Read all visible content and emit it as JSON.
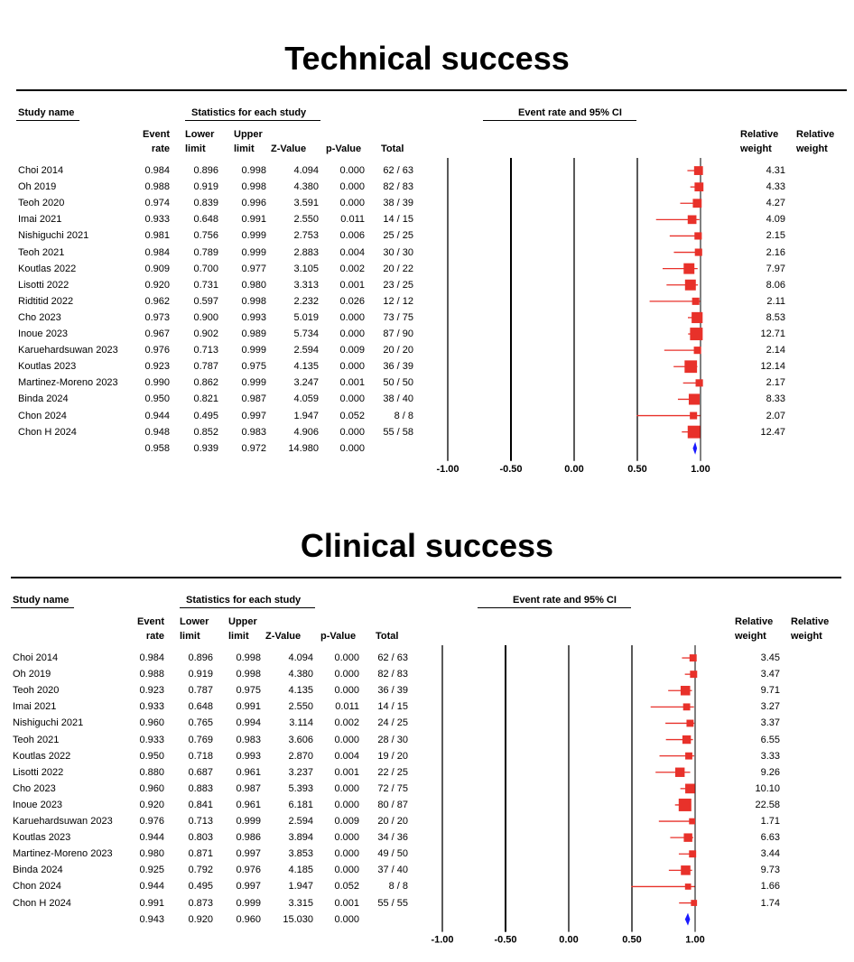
{
  "panels": [
    {
      "title": "Technical success",
      "headers": {
        "study_name": "Study name",
        "stats_group": "Statistics for each study",
        "plot_group": "Event rate and 95% CI",
        "event_rate": [
          "Event",
          "rate"
        ],
        "lower": [
          "Lower",
          "limit"
        ],
        "upper": [
          "Upper",
          "limit"
        ],
        "z": "Z-Value",
        "p": "p-Value",
        "total": "Total",
        "rel_weight_1": [
          "Relative",
          "weight"
        ],
        "rel_weight_2": [
          "Relative",
          "weight"
        ]
      },
      "rows": [
        {
          "study": "Choi 2014",
          "rate": "0.984",
          "lower": "0.896",
          "upper": "0.998",
          "z": "4.094",
          "p": "0.000",
          "total": "62 / 63",
          "weight": "4.31"
        },
        {
          "study": "Oh 2019",
          "rate": "0.988",
          "lower": "0.919",
          "upper": "0.998",
          "z": "4.380",
          "p": "0.000",
          "total": "82 / 83",
          "weight": "4.33"
        },
        {
          "study": "Teoh 2020",
          "rate": "0.974",
          "lower": "0.839",
          "upper": "0.996",
          "z": "3.591",
          "p": "0.000",
          "total": "38 / 39",
          "weight": "4.27"
        },
        {
          "study": "Imai 2021",
          "rate": "0.933",
          "lower": "0.648",
          "upper": "0.991",
          "z": "2.550",
          "p": "0.011",
          "total": "14 / 15",
          "weight": "4.09"
        },
        {
          "study": "Nishiguchi 2021",
          "rate": "0.981",
          "lower": "0.756",
          "upper": "0.999",
          "z": "2.753",
          "p": "0.006",
          "total": "25 / 25",
          "weight": "2.15"
        },
        {
          "study": "Teoh 2021",
          "rate": "0.984",
          "lower": "0.789",
          "upper": "0.999",
          "z": "2.883",
          "p": "0.004",
          "total": "30 / 30",
          "weight": "2.16"
        },
        {
          "study": "Koutlas 2022",
          "rate": "0.909",
          "lower": "0.700",
          "upper": "0.977",
          "z": "3.105",
          "p": "0.002",
          "total": "20 / 22",
          "weight": "7.97"
        },
        {
          "study": "Lisotti 2022",
          "rate": "0.920",
          "lower": "0.731",
          "upper": "0.980",
          "z": "3.313",
          "p": "0.001",
          "total": "23 / 25",
          "weight": "8.06"
        },
        {
          "study": "Ridtitid 2022",
          "rate": "0.962",
          "lower": "0.597",
          "upper": "0.998",
          "z": "2.232",
          "p": "0.026",
          "total": "12 / 12",
          "weight": "2.11"
        },
        {
          "study": "Cho 2023",
          "rate": "0.973",
          "lower": "0.900",
          "upper": "0.993",
          "z": "5.019",
          "p": "0.000",
          "total": "73 / 75",
          "weight": "8.53"
        },
        {
          "study": "Inoue 2023",
          "rate": "0.967",
          "lower": "0.902",
          "upper": "0.989",
          "z": "5.734",
          "p": "0.000",
          "total": "87 / 90",
          "weight": "12.71"
        },
        {
          "study": "Karuehardsuwan 2023",
          "rate": "0.976",
          "lower": "0.713",
          "upper": "0.999",
          "z": "2.594",
          "p": "0.009",
          "total": "20 / 20",
          "weight": "2.14"
        },
        {
          "study": "Koutlas 2023",
          "rate": "0.923",
          "lower": "0.787",
          "upper": "0.975",
          "z": "4.135",
          "p": "0.000",
          "total": "36 / 39",
          "weight": "12.14"
        },
        {
          "study": "Martinez-Moreno 2023",
          "rate": "0.990",
          "lower": "0.862",
          "upper": "0.999",
          "z": "3.247",
          "p": "0.001",
          "total": "50 / 50",
          "weight": "2.17"
        },
        {
          "study": "Binda 2024",
          "rate": "0.950",
          "lower": "0.821",
          "upper": "0.987",
          "z": "4.059",
          "p": "0.000",
          "total": "38 / 40",
          "weight": "8.33"
        },
        {
          "study": "Chon 2024",
          "rate": "0.944",
          "lower": "0.495",
          "upper": "0.997",
          "z": "1.947",
          "p": "0.052",
          "total": "8 / 8",
          "weight": "2.07"
        },
        {
          "study": "Chon H 2024",
          "rate": "0.948",
          "lower": "0.852",
          "upper": "0.983",
          "z": "4.906",
          "p": "0.000",
          "total": "55 / 58",
          "weight": "12.47"
        }
      ],
      "summary": {
        "rate": "0.958",
        "lower": "0.939",
        "upper": "0.972",
        "z": "14.980",
        "p": "0.000"
      },
      "axis_ticks": [
        "-1.00",
        "-0.50",
        "0.00",
        "0.50",
        "1.00"
      ]
    },
    {
      "title": "Clinical success",
      "headers": {
        "study_name": "Study name",
        "stats_group": "Statistics for each study",
        "plot_group": "Event rate and 95% CI",
        "event_rate": [
          "Event",
          "rate"
        ],
        "lower": [
          "Lower",
          "limit"
        ],
        "upper": [
          "Upper",
          "limit"
        ],
        "z": "Z-Value",
        "p": "p-Value",
        "total": "Total",
        "rel_weight_1": [
          "Relative",
          "weight"
        ],
        "rel_weight_2": [
          "Relative",
          "weight"
        ]
      },
      "rows": [
        {
          "study": "Choi 2014",
          "rate": "0.984",
          "lower": "0.896",
          "upper": "0.998",
          "z": "4.094",
          "p": "0.000",
          "total": "62 / 63",
          "weight": "3.45"
        },
        {
          "study": "Oh 2019",
          "rate": "0.988",
          "lower": "0.919",
          "upper": "0.998",
          "z": "4.380",
          "p": "0.000",
          "total": "82 / 83",
          "weight": "3.47"
        },
        {
          "study": "Teoh 2020",
          "rate": "0.923",
          "lower": "0.787",
          "upper": "0.975",
          "z": "4.135",
          "p": "0.000",
          "total": "36 / 39",
          "weight": "9.71"
        },
        {
          "study": "Imai 2021",
          "rate": "0.933",
          "lower": "0.648",
          "upper": "0.991",
          "z": "2.550",
          "p": "0.011",
          "total": "14 / 15",
          "weight": "3.27"
        },
        {
          "study": "Nishiguchi 2021",
          "rate": "0.960",
          "lower": "0.765",
          "upper": "0.994",
          "z": "3.114",
          "p": "0.002",
          "total": "24 / 25",
          "weight": "3.37"
        },
        {
          "study": "Teoh 2021",
          "rate": "0.933",
          "lower": "0.769",
          "upper": "0.983",
          "z": "3.606",
          "p": "0.000",
          "total": "28 / 30",
          "weight": "6.55"
        },
        {
          "study": "Koutlas 2022",
          "rate": "0.950",
          "lower": "0.718",
          "upper": "0.993",
          "z": "2.870",
          "p": "0.004",
          "total": "19 / 20",
          "weight": "3.33"
        },
        {
          "study": "Lisotti 2022",
          "rate": "0.880",
          "lower": "0.687",
          "upper": "0.961",
          "z": "3.237",
          "p": "0.001",
          "total": "22 / 25",
          "weight": "9.26"
        },
        {
          "study": "Cho 2023",
          "rate": "0.960",
          "lower": "0.883",
          "upper": "0.987",
          "z": "5.393",
          "p": "0.000",
          "total": "72 / 75",
          "weight": "10.10"
        },
        {
          "study": "Inoue 2023",
          "rate": "0.920",
          "lower": "0.841",
          "upper": "0.961",
          "z": "6.181",
          "p": "0.000",
          "total": "80 / 87",
          "weight": "22.58"
        },
        {
          "study": "Karuehardsuwan 2023",
          "rate": "0.976",
          "lower": "0.713",
          "upper": "0.999",
          "z": "2.594",
          "p": "0.009",
          "total": "20 / 20",
          "weight": "1.71"
        },
        {
          "study": "Koutlas 2023",
          "rate": "0.944",
          "lower": "0.803",
          "upper": "0.986",
          "z": "3.894",
          "p": "0.000",
          "total": "34 / 36",
          "weight": "6.63"
        },
        {
          "study": "Martinez-Moreno 2023",
          "rate": "0.980",
          "lower": "0.871",
          "upper": "0.997",
          "z": "3.853",
          "p": "0.000",
          "total": "49 / 50",
          "weight": "3.44"
        },
        {
          "study": "Binda 2024",
          "rate": "0.925",
          "lower": "0.792",
          "upper": "0.976",
          "z": "4.185",
          "p": "0.000",
          "total": "37 / 40",
          "weight": "9.73"
        },
        {
          "study": "Chon 2024",
          "rate": "0.944",
          "lower": "0.495",
          "upper": "0.997",
          "z": "1.947",
          "p": "0.052",
          "total": "8 / 8",
          "weight": "1.66"
        },
        {
          "study": "Chon H 2024",
          "rate": "0.991",
          "lower": "0.873",
          "upper": "0.999",
          "z": "3.315",
          "p": "0.001",
          "total": "55 / 55",
          "weight": "1.74"
        }
      ],
      "summary": {
        "rate": "0.943",
        "lower": "0.920",
        "upper": "0.960",
        "z": "15.030",
        "p": "0.000"
      },
      "axis_ticks": [
        "-1.00",
        "-0.50",
        "0.00",
        "0.50",
        "1.00"
      ]
    }
  ],
  "colors": {
    "study_marker": "#e8312a",
    "summary_diamond": "#1a1aff",
    "axis": "#000000"
  },
  "chart_data": [
    {
      "type": "scatter",
      "subtype": "forest-plot",
      "title": "Technical success",
      "xlabel": "Event rate and 95% CI",
      "xlim": [
        -1.0,
        1.0
      ],
      "xticks": [
        -1.0,
        -0.5,
        0.0,
        0.5,
        1.0
      ],
      "categories": [
        "Choi 2014",
        "Oh 2019",
        "Teoh 2020",
        "Imai 2021",
        "Nishiguchi 2021",
        "Teoh 2021",
        "Koutlas 2022",
        "Lisotti 2022",
        "Ridtitid 2022",
        "Cho 2023",
        "Inoue 2023",
        "Karuehardsuwan 2023",
        "Koutlas 2023",
        "Martinez-Moreno 2023",
        "Binda 2024",
        "Chon 2024",
        "Chon H 2024"
      ],
      "estimate": [
        0.984,
        0.988,
        0.974,
        0.933,
        0.981,
        0.984,
        0.909,
        0.92,
        0.962,
        0.973,
        0.967,
        0.976,
        0.923,
        0.99,
        0.95,
        0.944,
        0.948
      ],
      "lower": [
        0.896,
        0.919,
        0.839,
        0.648,
        0.756,
        0.789,
        0.7,
        0.731,
        0.597,
        0.9,
        0.902,
        0.713,
        0.787,
        0.862,
        0.821,
        0.495,
        0.852
      ],
      "upper": [
        0.998,
        0.998,
        0.996,
        0.991,
        0.999,
        0.999,
        0.977,
        0.98,
        0.998,
        0.993,
        0.989,
        0.999,
        0.975,
        0.999,
        0.987,
        0.997,
        0.983
      ],
      "weight": [
        4.31,
        4.33,
        4.27,
        4.09,
        2.15,
        2.16,
        7.97,
        8.06,
        2.11,
        8.53,
        12.71,
        2.14,
        12.14,
        2.17,
        8.33,
        2.07,
        12.47
      ],
      "summary": {
        "estimate": 0.958,
        "lower": 0.939,
        "upper": 0.972
      }
    },
    {
      "type": "scatter",
      "subtype": "forest-plot",
      "title": "Clinical success",
      "xlabel": "Event rate and 95% CI",
      "xlim": [
        -1.0,
        1.0
      ],
      "xticks": [
        -1.0,
        -0.5,
        0.0,
        0.5,
        1.0
      ],
      "categories": [
        "Choi 2014",
        "Oh 2019",
        "Teoh 2020",
        "Imai 2021",
        "Nishiguchi 2021",
        "Teoh 2021",
        "Koutlas 2022",
        "Lisotti 2022",
        "Cho 2023",
        "Inoue 2023",
        "Karuehardsuwan 2023",
        "Koutlas 2023",
        "Martinez-Moreno 2023",
        "Binda 2024",
        "Chon 2024",
        "Chon H 2024"
      ],
      "estimate": [
        0.984,
        0.988,
        0.923,
        0.933,
        0.96,
        0.933,
        0.95,
        0.88,
        0.96,
        0.92,
        0.976,
        0.944,
        0.98,
        0.925,
        0.944,
        0.991
      ],
      "lower": [
        0.896,
        0.919,
        0.787,
        0.648,
        0.765,
        0.769,
        0.718,
        0.687,
        0.883,
        0.841,
        0.713,
        0.803,
        0.871,
        0.792,
        0.495,
        0.873
      ],
      "upper": [
        0.998,
        0.998,
        0.975,
        0.991,
        0.994,
        0.983,
        0.993,
        0.961,
        0.987,
        0.961,
        0.999,
        0.986,
        0.997,
        0.976,
        0.997,
        0.999
      ],
      "weight": [
        3.45,
        3.47,
        9.71,
        3.27,
        3.37,
        6.55,
        3.33,
        9.26,
        10.1,
        22.58,
        1.71,
        6.63,
        3.44,
        9.73,
        1.66,
        1.74
      ],
      "summary": {
        "estimate": 0.943,
        "lower": 0.92,
        "upper": 0.96
      }
    }
  ]
}
